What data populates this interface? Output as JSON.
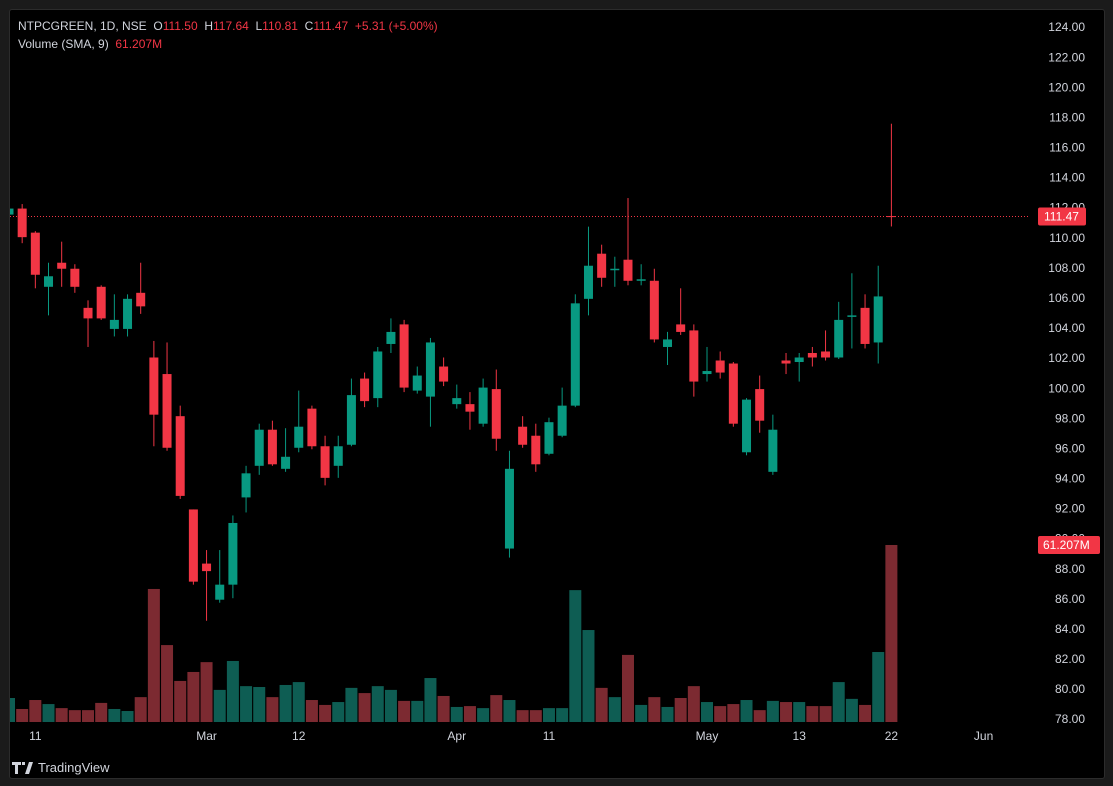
{
  "chart_data": {
    "type": "candlestick",
    "header": {
      "symbol": "NTPCGREEN, 1D, NSE",
      "o": "O",
      "open_label": "111.50",
      "h": "H",
      "l": "L",
      "c": "C",
      "change": "+5.31 (+5.00%)",
      "volume_title": "Volume (SMA, 9)"
    },
    "volume_value_label": "61.207M",
    "categories": [
      null,
      null,
      "11",
      null,
      null,
      null,
      null,
      null,
      null,
      null,
      null,
      null,
      null,
      null,
      null,
      "Mar",
      null,
      null,
      null,
      null,
      null,
      null,
      "12",
      null,
      null,
      null,
      null,
      null,
      null,
      null,
      null,
      null,
      null,
      null,
      "Apr",
      null,
      null,
      null,
      null,
      null,
      null,
      "11",
      null,
      null,
      null,
      null,
      null,
      null,
      null,
      null,
      null,
      null,
      null,
      "May",
      null,
      null,
      null,
      null,
      null,
      null,
      "13",
      null,
      null,
      null,
      null,
      null,
      null,
      "22",
      null,
      null,
      null,
      null,
      null,
      null,
      "Jun",
      null,
      null,
      null
    ],
    "open": [
      111.6,
      112.0,
      110.4,
      106.8,
      108.4,
      108.0,
      105.4,
      106.8,
      104.0,
      104.0,
      106.4,
      102.1,
      101.0,
      98.2,
      92.0,
      88.4,
      86.0,
      87.0,
      92.8,
      94.9,
      97.3,
      94.7,
      96.1,
      98.7,
      96.2,
      94.9,
      96.3,
      100.7,
      99.4,
      103.0,
      104.3,
      99.9,
      99.5,
      101.5,
      99.0,
      99.0,
      97.7,
      100.0,
      89.4,
      97.5,
      96.9,
      95.7,
      96.9,
      98.9,
      106.0,
      109.0,
      107.9,
      108.6,
      107.2,
      107.2,
      102.8,
      104.3,
      103.9,
      101.0,
      101.9,
      101.7,
      95.8,
      100.0,
      94.5,
      101.9,
      101.8,
      102.4,
      102.5,
      102.1,
      104.8,
      105.4,
      103.1,
      111.5,
      null,
      null,
      null,
      null,
      null,
      null,
      null,
      null,
      null,
      null
    ],
    "high": [
      112.1,
      112.3,
      110.5,
      108.4,
      109.8,
      108.3,
      105.9,
      106.9,
      106.3,
      106.3,
      108.4,
      103.2,
      103.1,
      98.9,
      92.0,
      89.3,
      89.3,
      91.6,
      94.9,
      97.7,
      97.9,
      97.4,
      99.9,
      98.9,
      96.9,
      96.9,
      100.7,
      101.1,
      102.8,
      104.7,
      104.6,
      101.5,
      103.4,
      102.1,
      100.3,
      99.8,
      100.7,
      101.3,
      95.9,
      98.2,
      97.7,
      98.1,
      100.1,
      106.3,
      110.8,
      109.6,
      108.8,
      112.7,
      108.3,
      108.0,
      103.8,
      106.7,
      104.3,
      102.8,
      102.5,
      101.8,
      99.4,
      100.9,
      98.3,
      102.4,
      102.4,
      102.8,
      103.9,
      105.8,
      107.7,
      106.3,
      108.2,
      117.64,
      null,
      null,
      null,
      null,
      null,
      null,
      null,
      null,
      null,
      null
    ],
    "low": [
      111.5,
      109.7,
      106.7,
      104.9,
      106.8,
      106.4,
      102.8,
      104.6,
      103.5,
      103.5,
      105.0,
      96.2,
      95.9,
      92.7,
      87.0,
      84.6,
      85.8,
      86.1,
      91.8,
      94.3,
      94.9,
      94.5,
      95.8,
      96.0,
      93.6,
      94.1,
      96.2,
      98.8,
      98.8,
      102.4,
      99.8,
      99.7,
      97.5,
      100.2,
      98.7,
      97.3,
      97.5,
      95.9,
      88.8,
      96.1,
      94.5,
      95.6,
      96.8,
      98.8,
      104.9,
      106.8,
      106.8,
      106.9,
      106.9,
      103.1,
      101.6,
      103.6,
      99.5,
      100.5,
      100.7,
      97.5,
      95.6,
      97.1,
      94.3,
      101.0,
      100.5,
      101.5,
      101.9,
      102.0,
      102.7,
      102.7,
      101.7,
      110.81,
      null,
      null,
      null,
      null,
      null,
      null,
      null,
      null,
      null,
      null
    ],
    "close": [
      112.0,
      110.1,
      107.6,
      107.5,
      108.0,
      106.8,
      104.7,
      104.7,
      104.6,
      106.0,
      105.5,
      98.3,
      96.1,
      92.9,
      87.2,
      87.9,
      87.0,
      91.1,
      94.4,
      97.3,
      95.0,
      95.5,
      97.5,
      96.2,
      94.1,
      96.2,
      99.6,
      99.2,
      102.5,
      103.8,
      100.1,
      100.9,
      103.1,
      100.5,
      99.4,
      98.5,
      100.1,
      96.7,
      94.7,
      96.3,
      95.0,
      97.8,
      98.9,
      105.7,
      108.2,
      107.4,
      108.0,
      107.2,
      107.3,
      103.3,
      103.3,
      103.8,
      100.5,
      101.2,
      101.1,
      97.7,
      99.3,
      97.9,
      97.3,
      101.7,
      102.1,
      102.1,
      102.1,
      104.6,
      104.9,
      103.0,
      106.16,
      111.47,
      null,
      null,
      null,
      null,
      null,
      null,
      null,
      null,
      null,
      null
    ],
    "volume": [
      8.3,
      4.5,
      7.6,
      6.2,
      4.8,
      4.1,
      4.1,
      6.6,
      4.5,
      3.8,
      8.6,
      46.0,
      26.6,
      14.2,
      17.3,
      20.7,
      11.1,
      21.1,
      12.4,
      12.1,
      8.6,
      12.8,
      13.8,
      7.6,
      5.9,
      6.9,
      11.8,
      10.0,
      12.4,
      11.1,
      7.3,
      7.3,
      15.2,
      9.0,
      5.2,
      5.5,
      4.8,
      9.3,
      7.6,
      4.1,
      4.1,
      4.8,
      4.8,
      45.6,
      31.8,
      11.8,
      8.6,
      23.2,
      5.9,
      8.6,
      5.2,
      8.3,
      12.4,
      6.9,
      5.5,
      6.2,
      7.6,
      4.1,
      7.3,
      6.9,
      6.9,
      5.5,
      5.5,
      13.8,
      8.0,
      5.9,
      24.2,
      61.207,
      null,
      null,
      null,
      null,
      null,
      null,
      null,
      null,
      null,
      null
    ],
    "ylim": [
      77.87,
      125.2
    ],
    "yticks": [
      {
        "value": 78,
        "label": "78.00"
      },
      {
        "value": 80,
        "label": "80.00"
      },
      {
        "value": 82,
        "label": "82.00"
      },
      {
        "value": 84,
        "label": "84.00"
      },
      {
        "value": 86,
        "label": "86.00"
      },
      {
        "value": 88,
        "label": "88.00"
      },
      {
        "value": 90,
        "label": "90.00"
      },
      {
        "value": 92,
        "label": "92.00"
      },
      {
        "value": 94,
        "label": "94.00"
      },
      {
        "value": 96,
        "label": "96.00"
      },
      {
        "value": 98,
        "label": "98.00"
      },
      {
        "value": 100,
        "label": "100.00"
      },
      {
        "value": 102,
        "label": "102.00"
      },
      {
        "value": 104,
        "label": "104.00"
      },
      {
        "value": 106,
        "label": "106.00"
      },
      {
        "value": 108,
        "label": "108.00"
      },
      {
        "value": 110,
        "label": "110.00"
      },
      {
        "value": 112,
        "label": "112.00"
      },
      {
        "value": 114,
        "label": "114.00"
      },
      {
        "value": 116,
        "label": "116.00"
      },
      {
        "value": 118,
        "label": "118.00"
      },
      {
        "value": 120,
        "label": "120.00"
      },
      {
        "value": 122,
        "label": "122.00"
      },
      {
        "value": 124,
        "label": "124.00"
      }
    ],
    "y2lim": [
      0,
      246.2
    ],
    "grid": false,
    "up_color": "#089981",
    "down_color": "#f23645",
    "volume_up_color": "#0e5d53",
    "volume_down_color": "#7c2a31"
  },
  "footer": {
    "brand": "TradingView"
  }
}
